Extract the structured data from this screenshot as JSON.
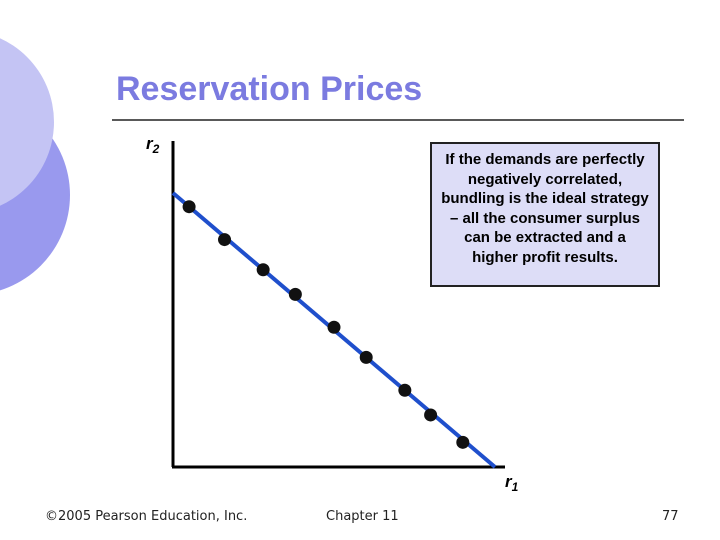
{
  "slide": {
    "title": "Reservation Prices",
    "callout_text": "If the demands are perfectly negatively correlated, bundling is the ideal strategy – all the consumer surplus can be extracted and a higher profit results."
  },
  "footer": {
    "copyright": "©2005 Pearson Education, Inc.",
    "chapter": "Chapter 11",
    "page_number": "77"
  },
  "chart_data": {
    "type": "scatter",
    "xlabel": "r1",
    "ylabel": "r2",
    "line": {
      "x": [
        0,
        10
      ],
      "y": [
        10,
        0
      ]
    },
    "points": [
      {
        "x": 0.5,
        "y": 9.5
      },
      {
        "x": 1.6,
        "y": 8.3
      },
      {
        "x": 2.8,
        "y": 7.2
      },
      {
        "x": 3.8,
        "y": 6.3
      },
      {
        "x": 5.0,
        "y": 5.1
      },
      {
        "x": 6.0,
        "y": 4.0
      },
      {
        "x": 7.2,
        "y": 2.8
      },
      {
        "x": 8.0,
        "y": 1.9
      },
      {
        "x": 9.0,
        "y": 0.9
      }
    ],
    "colors": {
      "line": "#1f4fcc",
      "points": "#111111",
      "axes": "#000000"
    }
  },
  "theme": {
    "title_color": "#7b7be0",
    "callout_bg": "#ddddf7",
    "decor_light": "#c4c4f4",
    "decor_mid": "#9999ee"
  }
}
